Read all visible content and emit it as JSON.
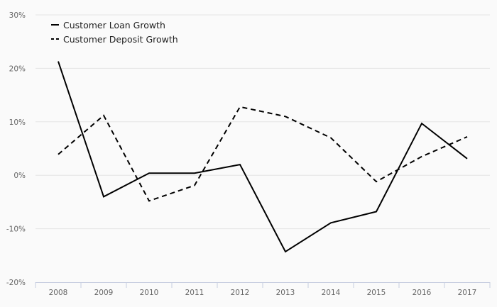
{
  "chart_data": {
    "type": "line",
    "title": "",
    "xlabel": "",
    "ylabel": "",
    "categories": [
      "2008",
      "2009",
      "2010",
      "2011",
      "2012",
      "2013",
      "2014",
      "2015",
      "2016",
      "2017"
    ],
    "ylim": [
      -20,
      30
    ],
    "yticks": [
      -20,
      -10,
      0,
      10,
      20,
      30
    ],
    "ytick_labels": [
      "-20%",
      "-10%",
      "0%",
      "10%",
      "20%",
      "30%"
    ],
    "grid": true,
    "legend_position": "top-left",
    "series": [
      {
        "name": "Customer Loan Growth",
        "style": "solid",
        "color": "#000000",
        "values": [
          21.3,
          -4.0,
          0.4,
          0.4,
          2.0,
          -14.3,
          -8.9,
          -6.8,
          9.7,
          3.1
        ]
      },
      {
        "name": "Customer Deposit Growth",
        "style": "dashed",
        "color": "#000000",
        "values": [
          3.9,
          11.2,
          -4.8,
          -1.9,
          12.8,
          11.0,
          7.0,
          -1.2,
          3.5,
          7.2
        ]
      }
    ]
  }
}
